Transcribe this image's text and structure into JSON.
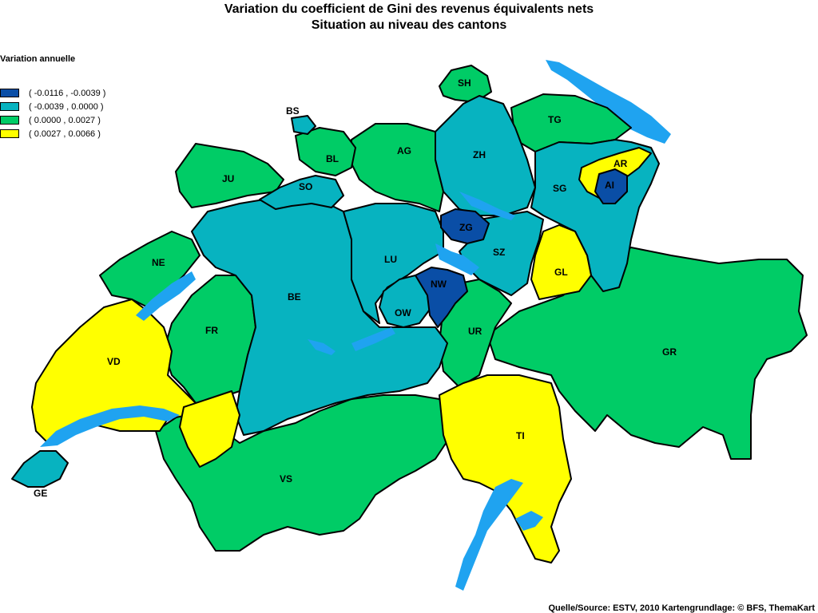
{
  "title": {
    "line1": "Variation du coefficient de Gini des revenus équivalents nets",
    "line2": "Situation au niveau des cantons"
  },
  "legend": {
    "title": "Variation annuelle",
    "items": [
      {
        "label": "( -0.0116 , -0.0039 )",
        "color": "#0a4ea6"
      },
      {
        "label": "( -0.0039 , 0.0000 )",
        "color": "#07b3c0"
      },
      {
        "label": "( 0.0000 , 0.0027 )",
        "color": "#00cc66"
      },
      {
        "label": "( 0.0027 , 0.0066 )",
        "color": "#ffff00"
      }
    ]
  },
  "colors": {
    "dark_blue": "#0a4ea6",
    "teal": "#07b3c0",
    "green": "#00cc66",
    "yellow": "#ffff00",
    "lake": "#1fa3f0"
  },
  "cantons": {
    "SH": "SH",
    "BS": "BS",
    "BL": "BL",
    "JU": "JU",
    "SO": "SO",
    "AG": "AG",
    "ZH": "ZH",
    "TG": "TG",
    "AR": "AR",
    "AI": "AI",
    "SG": "SG",
    "ZG": "ZG",
    "SZ": "SZ",
    "GL": "GL",
    "LU": "LU",
    "NW": "NW",
    "OW": "OW",
    "NE": "NE",
    "BE": "BE",
    "UR": "UR",
    "FR": "FR",
    "VD": "VD",
    "GR": "GR",
    "TI": "TI",
    "VS": "VS",
    "GE": "GE"
  },
  "source": "Quelle/Source: ESTV, 2010 Kartengrundlage: © BFS, ThemaKart"
}
